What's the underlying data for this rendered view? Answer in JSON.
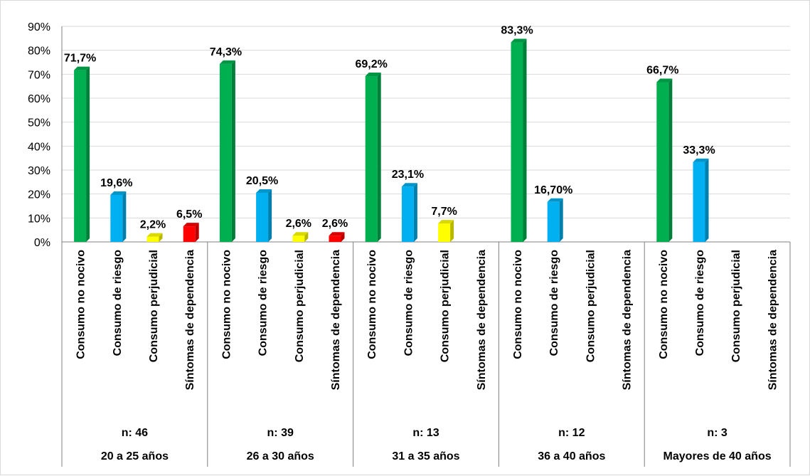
{
  "chart_data": {
    "type": "bar",
    "title": "",
    "xlabel": "",
    "ylabel": "",
    "ylim": [
      0,
      90
    ],
    "y_ticks": [
      "0%",
      "10%",
      "20%",
      "30%",
      "40%",
      "50%",
      "60%",
      "70%",
      "80%",
      "90%"
    ],
    "grid": true,
    "legend": "none",
    "categories": [
      "Consumo no nocivo",
      "Consumo de riesgo",
      "Consumo perjudicial",
      "Síntomas de dependencia"
    ],
    "category_colors": [
      "#00b050",
      "#00b0f0",
      "#ffff00",
      "#ff0000"
    ],
    "groups": [
      {
        "label": "20 a 25 años",
        "n_label": "n: 46",
        "values": [
          71.7,
          19.6,
          2.2,
          6.5
        ],
        "value_labels": [
          "71,7%",
          "19,6%",
          "2,2%",
          "6,5%"
        ]
      },
      {
        "label": "26 a 30 años",
        "n_label": "n: 39",
        "values": [
          74.3,
          20.5,
          2.6,
          2.6
        ],
        "value_labels": [
          "74,3%",
          "20,5%",
          "2,6%",
          "2,6%"
        ]
      },
      {
        "label": "31 a 35 años",
        "n_label": "n: 13",
        "values": [
          69.2,
          23.1,
          7.7,
          null
        ],
        "value_labels": [
          "69,2%",
          "23,1%",
          "7,7%",
          ""
        ]
      },
      {
        "label": "36 a 40 años",
        "n_label": "n: 12",
        "values": [
          83.3,
          16.7,
          null,
          null
        ],
        "value_labels": [
          "83,3%",
          "16,70%",
          "",
          ""
        ]
      },
      {
        "label": "Mayores de 40 años",
        "n_label": "n: 3",
        "values": [
          66.7,
          33.3,
          null,
          null
        ],
        "value_labels": [
          "66,7%",
          "33,3%",
          "",
          ""
        ]
      }
    ]
  }
}
